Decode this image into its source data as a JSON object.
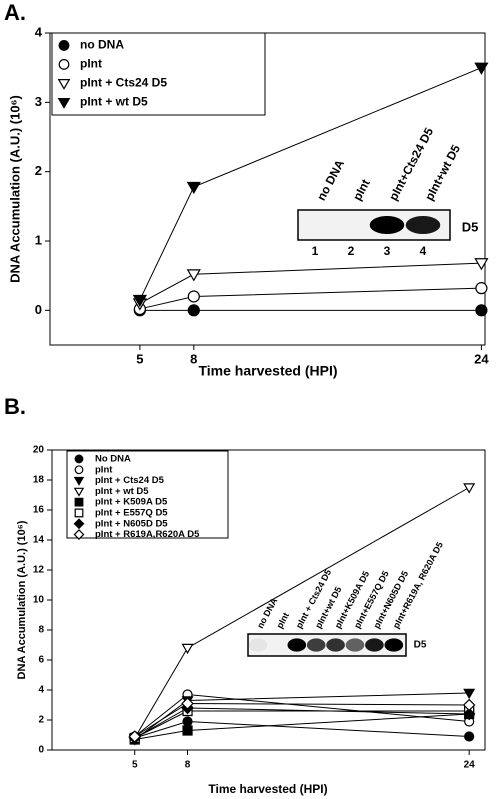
{
  "chart_data": [
    {
      "type": "line",
      "panel": "A.",
      "xlabel": "Time harvested (HPI)",
      "ylabel": "DNA Accumulation (A.U.) (10⁶)",
      "x": [
        5,
        8,
        24
      ],
      "xlim": [
        0,
        24.2
      ],
      "xticks": [
        5,
        8,
        24
      ],
      "ylim": [
        -0.5,
        4
      ],
      "yticks": [
        0,
        1,
        2,
        3,
        4
      ],
      "legend": "upper left",
      "series": [
        {
          "name": "no DNA",
          "color": "#000000",
          "marker": "circle",
          "values": [
            0,
            0,
            0
          ]
        },
        {
          "name": "pInt",
          "color": "#000000",
          "marker": "circle-open",
          "values": [
            0.02,
            0.2,
            0.32
          ]
        },
        {
          "name": "pInt + Cts24 D5",
          "color": "#000000",
          "marker": "triangle-down-open",
          "values": [
            0.1,
            0.52,
            0.68
          ]
        },
        {
          "name": "pInt + wt D5",
          "color": "#000000",
          "marker": "triangle-down",
          "values": [
            0.15,
            1.78,
            3.5
          ]
        }
      ],
      "inset": {
        "lanes": [
          "no DNA",
          "pInt",
          "pInt+Cts24 D5",
          "pInt+wt D5"
        ],
        "numbers": [
          "1",
          "2",
          "3",
          "4"
        ],
        "label": "D5"
      }
    },
    {
      "type": "line",
      "panel": "B.",
      "xlabel": "Time harvested (HPI)",
      "ylabel": "DNA Accumulation (A.U.) (10⁶)",
      "x": [
        5,
        8,
        24
      ],
      "xlim": [
        0.3,
        24.9
      ],
      "xticks": [
        5,
        8,
        24
      ],
      "ylim": [
        0,
        20
      ],
      "yticks": [
        0,
        2,
        4,
        6,
        8,
        10,
        12,
        14,
        16,
        18,
        20
      ],
      "legend": "upper left",
      "series": [
        {
          "name": "No DNA",
          "color": "#000000",
          "marker": "circle",
          "values": [
            0.8,
            1.9,
            0.9
          ]
        },
        {
          "name": "pInt",
          "color": "#000000",
          "marker": "circle-open",
          "values": [
            0.9,
            3.7,
            1.9
          ]
        },
        {
          "name": "pInt + Cts24 D5",
          "color": "#000000",
          "marker": "triangle-down",
          "values": [
            0.7,
            3.3,
            3.8
          ]
        },
        {
          "name": "pInt + wt D5",
          "color": "#000000",
          "marker": "triangle-down-open",
          "values": [
            0.8,
            6.8,
            17.5
          ]
        },
        {
          "name": "pInt + K509A D5",
          "color": "#000000",
          "marker": "square",
          "values": [
            0.7,
            1.3,
            2.4
          ]
        },
        {
          "name": "pInt + E557Q D5",
          "color": "#000000",
          "marker": "square-open",
          "values": [
            0.8,
            2.6,
            2.6
          ]
        },
        {
          "name": "pInt + N605D D5",
          "color": "#000000",
          "marker": "diamond",
          "values": [
            0.8,
            2.8,
            2.4
          ]
        },
        {
          "name": "pInt + R619A,R620A D5",
          "color": "#000000",
          "marker": "diamond-open",
          "values": [
            0.9,
            3.1,
            3.0
          ]
        }
      ],
      "inset": {
        "lanes": [
          "no DNA",
          "pInt",
          "pInt + Cts24 D5",
          "pInt+wt D5",
          "pInt+K509A D5",
          "pInt+E557Q D5",
          "pInt+N605D D5",
          "pInt+R619A, R620A D5"
        ],
        "label": "D5"
      }
    }
  ]
}
